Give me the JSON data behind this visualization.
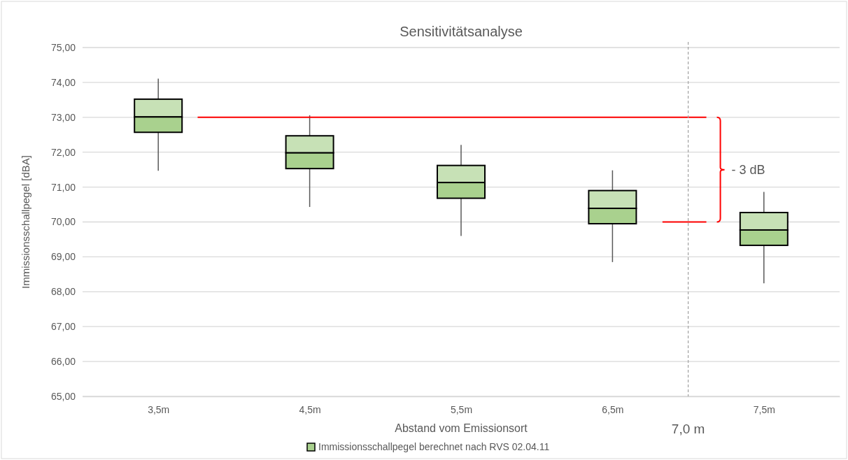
{
  "chart_data": {
    "type": "box",
    "title": "Sensitivitätsanalyse",
    "xlabel": "Abstand vom Emissionsort",
    "ylabel": "Immissionsschallpegel [dBA]",
    "x": [
      3.5,
      4.5,
      5.5,
      6.5,
      7.5
    ],
    "xlim": [
      3,
      8
    ],
    "xticks": [
      {
        "value": 3.5,
        "label": "3,5m"
      },
      {
        "value": 4.5,
        "label": "4,5m"
      },
      {
        "value": 5.5,
        "label": "5,5m"
      },
      {
        "value": 6.5,
        "label": "6,5m"
      },
      {
        "value": 7.5,
        "label": "7,5m"
      }
    ],
    "ylim": [
      65,
      75
    ],
    "yticks": [
      {
        "value": 65,
        "label": "65,00"
      },
      {
        "value": 66,
        "label": "66,00"
      },
      {
        "value": 67,
        "label": "67,00"
      },
      {
        "value": 68,
        "label": "68,00"
      },
      {
        "value": 69,
        "label": "69,00"
      },
      {
        "value": 70,
        "label": "70,00"
      },
      {
        "value": 71,
        "label": "71,00"
      },
      {
        "value": 72,
        "label": "72,00"
      },
      {
        "value": 73,
        "label": "73,00"
      },
      {
        "value": 74,
        "label": "74,00"
      },
      {
        "value": 75,
        "label": "75,00"
      }
    ],
    "grid": "y",
    "legend": "bottom",
    "series": [
      {
        "name": "Immissionsschallpegel berechnet nach RVS 02.04.11",
        "color": "#a9d18e",
        "boxes": [
          {
            "low": 71.47,
            "q1": 72.57,
            "median": 73.01,
            "q3": 73.52,
            "high": 74.11
          },
          {
            "low": 70.43,
            "q1": 71.53,
            "median": 71.98,
            "q3": 72.47,
            "high": 73.06
          },
          {
            "low": 69.6,
            "q1": 70.68,
            "median": 71.13,
            "q3": 71.62,
            "high": 72.21
          },
          {
            "low": 68.85,
            "q1": 69.95,
            "median": 70.39,
            "q3": 70.9,
            "high": 71.48
          },
          {
            "low": 68.24,
            "q1": 69.33,
            "median": 69.77,
            "q3": 70.27,
            "high": 70.86
          }
        ]
      },
      {
        "type": "line",
        "color": "#ff0000",
        "x": [
          3.76,
          7.12
        ],
        "values": [
          73,
          73
        ]
      },
      {
        "type": "line",
        "color": "#ff0000",
        "x": [
          6.83,
          7.12
        ],
        "values": [
          70,
          70
        ]
      }
    ],
    "marker": "none",
    "line_style": "solid",
    "ref_lines": [
      {
        "axis": "x",
        "value": 7.0,
        "label": "7,0 m",
        "color": "#a6a6a6",
        "line_style": "dashed"
      }
    ],
    "annotations": [
      "- 3 dB"
    ]
  }
}
